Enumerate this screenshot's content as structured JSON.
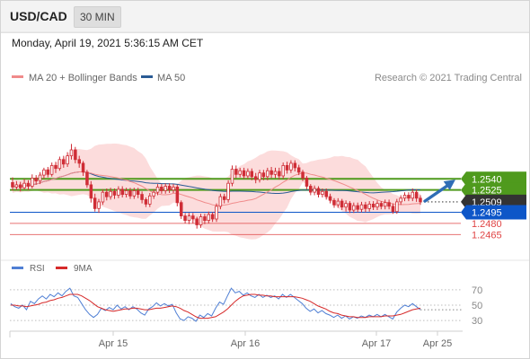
{
  "header": {
    "symbol": "USD/CAD",
    "timeframe": "30 MIN"
  },
  "datetime": "Monday, April 19, 2021 5:36:15 AM CET",
  "legend": {
    "ma20": "MA 20 + Bollinger Bands",
    "ma50": "MA 50",
    "credit": "Research © 2021 Trading Central",
    "rsi": "RSI",
    "ma9": "9MA"
  },
  "colors": {
    "candle": "#cf2d36",
    "ma20": "#f08b8b",
    "band": "#fcdcdc",
    "ma50": "#2a5b95",
    "resistance": "#4f9a1d",
    "pivot": "#0d56c8",
    "support": "#e04545",
    "current": "#333333",
    "rsi": "#4f7fd4",
    "rsi_ma": "#d62a2a",
    "arrow": "#2f6db5"
  },
  "chart_data": [
    {
      "type": "candlestick",
      "x_ticks": [
        "Apr 15",
        "Apr 16",
        "Apr 17",
        "Apr 25"
      ],
      "ylim": [
        1.244,
        1.266
      ],
      "current_price": 1.2509,
      "levels": [
        {
          "value": 1.254,
          "label": "1.2540",
          "kind": "resistance"
        },
        {
          "value": 1.2525,
          "label": "1.2525",
          "kind": "resistance"
        },
        {
          "value": 1.2509,
          "label": "1.2509",
          "kind": "current"
        },
        {
          "value": 1.2495,
          "label": "1.2495",
          "kind": "pivot"
        },
        {
          "value": 1.248,
          "label": "1.2480",
          "kind": "support"
        },
        {
          "value": 1.2465,
          "label": "1.2465",
          "kind": "support"
        }
      ],
      "candles": [
        [
          1.2535,
          1.2529,
          1.2542,
          1.2524
        ],
        [
          1.2529,
          1.2532,
          1.2537,
          1.2525
        ],
        [
          1.2532,
          1.2528,
          1.2536,
          1.2523
        ],
        [
          1.2528,
          1.2534,
          1.254,
          1.2526
        ],
        [
          1.2534,
          1.253,
          1.2538,
          1.2525
        ],
        [
          1.253,
          1.2541,
          1.2546,
          1.2527
        ],
        [
          1.2541,
          1.2537,
          1.2545,
          1.2532
        ],
        [
          1.2537,
          1.2545,
          1.2549,
          1.2533
        ],
        [
          1.2545,
          1.2552,
          1.2555,
          1.254
        ],
        [
          1.2552,
          1.2546,
          1.2556,
          1.2542
        ],
        [
          1.2546,
          1.2558,
          1.2562,
          1.2543
        ],
        [
          1.2558,
          1.2554,
          1.2563,
          1.2548
        ],
        [
          1.2554,
          1.2566,
          1.257,
          1.2551
        ],
        [
          1.2566,
          1.256,
          1.2571,
          1.2555
        ],
        [
          1.256,
          1.2571,
          1.2576,
          1.2556
        ],
        [
          1.2571,
          1.2579,
          1.2587,
          1.2566
        ],
        [
          1.2579,
          1.2566,
          1.2583,
          1.2561
        ],
        [
          1.2566,
          1.2561,
          1.2571,
          1.2555
        ],
        [
          1.2561,
          1.2549,
          1.2564,
          1.2544
        ],
        [
          1.2549,
          1.2532,
          1.2552,
          1.2528
        ],
        [
          1.2532,
          1.2514,
          1.2537,
          1.2508
        ],
        [
          1.2514,
          1.25,
          1.252,
          1.2496
        ],
        [
          1.25,
          1.2509,
          1.2513,
          1.2494
        ],
        [
          1.2509,
          1.2522,
          1.2526,
          1.2505
        ],
        [
          1.2522,
          1.2516,
          1.2527,
          1.2511
        ],
        [
          1.2516,
          1.2523,
          1.2528,
          1.2512
        ],
        [
          1.2523,
          1.2518,
          1.2527,
          1.2513
        ],
        [
          1.2518,
          1.2526,
          1.253,
          1.2514
        ],
        [
          1.2526,
          1.2519,
          1.253,
          1.2515
        ],
        [
          1.2519,
          1.2524,
          1.2528,
          1.2515
        ],
        [
          1.2524,
          1.2517,
          1.2528,
          1.2513
        ],
        [
          1.2517,
          1.2524,
          1.2528,
          1.2513
        ],
        [
          1.2524,
          1.2519,
          1.2528,
          1.2514
        ],
        [
          1.2519,
          1.2512,
          1.2523,
          1.2507
        ],
        [
          1.2512,
          1.2506,
          1.2515,
          1.2502
        ],
        [
          1.2506,
          1.2517,
          1.2521,
          1.2502
        ],
        [
          1.2517,
          1.2522,
          1.2526,
          1.2513
        ],
        [
          1.2522,
          1.2529,
          1.2533,
          1.2518
        ],
        [
          1.2529,
          1.2524,
          1.2533,
          1.252
        ],
        [
          1.2524,
          1.253,
          1.2534,
          1.252
        ],
        [
          1.253,
          1.2525,
          1.2534,
          1.2521
        ],
        [
          1.2525,
          1.2529,
          1.2533,
          1.2521
        ],
        [
          1.2529,
          1.2508,
          1.2532,
          1.2503
        ],
        [
          1.2508,
          1.249,
          1.2511,
          1.2486
        ],
        [
          1.249,
          1.2484,
          1.2494,
          1.248
        ],
        [
          1.2484,
          1.249,
          1.2494,
          1.2479
        ],
        [
          1.249,
          1.2486,
          1.2494,
          1.248
        ],
        [
          1.2486,
          1.2478,
          1.2489,
          1.2473
        ],
        [
          1.2478,
          1.2489,
          1.2493,
          1.2474
        ],
        [
          1.2489,
          1.2484,
          1.2493,
          1.2479
        ],
        [
          1.2484,
          1.2492,
          1.2496,
          1.248
        ],
        [
          1.2492,
          1.2486,
          1.2495,
          1.2482
        ],
        [
          1.2486,
          1.2503,
          1.2507,
          1.2482
        ],
        [
          1.2503,
          1.2516,
          1.252,
          1.2499
        ],
        [
          1.2516,
          1.2512,
          1.252,
          1.2507
        ],
        [
          1.2512,
          1.2534,
          1.2538,
          1.2508
        ],
        [
          1.2534,
          1.2553,
          1.2558,
          1.253
        ],
        [
          1.2553,
          1.2546,
          1.2558,
          1.2541
        ],
        [
          1.2546,
          1.2551,
          1.2555,
          1.2542
        ],
        [
          1.2551,
          1.2544,
          1.2555,
          1.254
        ],
        [
          1.2544,
          1.255,
          1.2554,
          1.254
        ],
        [
          1.255,
          1.2543,
          1.2554,
          1.2538
        ],
        [
          1.2543,
          1.2539,
          1.2548,
          1.2534
        ],
        [
          1.2539,
          1.2548,
          1.2552,
          1.2535
        ],
        [
          1.2548,
          1.2543,
          1.2552,
          1.2538
        ],
        [
          1.2543,
          1.2551,
          1.2555,
          1.2538
        ],
        [
          1.2551,
          1.2546,
          1.2556,
          1.2541
        ],
        [
          1.2546,
          1.255,
          1.2555,
          1.2541
        ],
        [
          1.255,
          1.2544,
          1.2555,
          1.2539
        ],
        [
          1.2544,
          1.2558,
          1.2562,
          1.254
        ],
        [
          1.2558,
          1.2552,
          1.2563,
          1.2547
        ],
        [
          1.2552,
          1.2561,
          1.2565,
          1.2548
        ],
        [
          1.2561,
          1.2555,
          1.2565,
          1.255
        ],
        [
          1.2555,
          1.2549,
          1.2559,
          1.2545
        ],
        [
          1.2549,
          1.2541,
          1.2552,
          1.2537
        ],
        [
          1.2541,
          1.253,
          1.2544,
          1.2526
        ],
        [
          1.253,
          1.2522,
          1.2533,
          1.2518
        ],
        [
          1.2522,
          1.2527,
          1.2531,
          1.2518
        ],
        [
          1.2527,
          1.2519,
          1.253,
          1.2515
        ],
        [
          1.2519,
          1.2523,
          1.2527,
          1.2515
        ],
        [
          1.2523,
          1.2516,
          1.2527,
          1.2512
        ],
        [
          1.2516,
          1.2511,
          1.252,
          1.2507
        ],
        [
          1.2511,
          1.2505,
          1.2514,
          1.2501
        ],
        [
          1.2505,
          1.251,
          1.2514,
          1.2501
        ],
        [
          1.251,
          1.2502,
          1.2513,
          1.2498
        ],
        [
          1.2502,
          1.2507,
          1.2511,
          1.2496
        ],
        [
          1.2507,
          1.2498,
          1.251,
          1.2494
        ],
        [
          1.2498,
          1.2504,
          1.2508,
          1.2494
        ],
        [
          1.2504,
          1.2499,
          1.2508,
          1.2495
        ],
        [
          1.2499,
          1.2505,
          1.2509,
          1.2495
        ],
        [
          1.2505,
          1.25,
          1.2509,
          1.2495
        ],
        [
          1.25,
          1.2506,
          1.251,
          1.2496
        ],
        [
          1.2506,
          1.2502,
          1.251,
          1.2498
        ],
        [
          1.2502,
          1.2507,
          1.2511,
          1.2498
        ],
        [
          1.2507,
          1.2503,
          1.251,
          1.2499
        ],
        [
          1.2503,
          1.2508,
          1.2512,
          1.2499
        ],
        [
          1.2508,
          1.2503,
          1.2512,
          1.2499
        ],
        [
          1.2503,
          1.2496,
          1.2507,
          1.2493
        ],
        [
          1.2496,
          1.2509,
          1.2513,
          1.2493
        ],
        [
          1.2509,
          1.2514,
          1.2518,
          1.2505
        ],
        [
          1.2514,
          1.2518,
          1.2522,
          1.251
        ],
        [
          1.2518,
          1.2514,
          1.2522,
          1.251
        ],
        [
          1.2514,
          1.2522,
          1.2527,
          1.251
        ],
        [
          1.2522,
          1.2514,
          1.2526,
          1.2509
        ],
        [
          1.2514,
          1.2509,
          1.2518,
          1.2505
        ]
      ]
    },
    {
      "type": "line",
      "title": "RSI",
      "ylim": [
        22,
        78
      ],
      "y_ticks": [
        70,
        50,
        30
      ],
      "series": [
        {
          "name": "RSI",
          "values": [
            52,
            48,
            46,
            50,
            44,
            55,
            52,
            58,
            62,
            58,
            64,
            61,
            66,
            62,
            68,
            72,
            62,
            60,
            52,
            44,
            38,
            34,
            38,
            46,
            43,
            47,
            44,
            50,
            45,
            48,
            44,
            48,
            45,
            40,
            37,
            45,
            48,
            53,
            49,
            52,
            49,
            51,
            40,
            32,
            30,
            35,
            33,
            29,
            37,
            34,
            39,
            36,
            46,
            54,
            51,
            62,
            72,
            66,
            68,
            63,
            66,
            62,
            60,
            64,
            60,
            63,
            60,
            62,
            58,
            64,
            60,
            64,
            60,
            56,
            52,
            46,
            42,
            45,
            40,
            43,
            39,
            37,
            34,
            37,
            33,
            36,
            32,
            35,
            33,
            36,
            34,
            37,
            35,
            38,
            35,
            38,
            35,
            32,
            41,
            46,
            50,
            48,
            52,
            48,
            44
          ]
        },
        {
          "name": "9MA",
          "values": [
            50,
            50,
            49,
            49,
            48,
            49,
            50,
            51,
            53,
            54,
            56,
            57,
            59,
            60,
            62,
            64,
            64,
            64,
            62,
            59,
            56,
            52,
            48,
            46,
            44,
            43,
            42,
            43,
            44,
            45,
            45,
            46,
            46,
            45,
            44,
            44,
            45,
            46,
            46,
            47,
            48,
            49,
            48,
            46,
            43,
            41,
            38,
            35,
            33,
            33,
            33,
            34,
            35,
            38,
            41,
            45,
            50,
            55,
            59,
            62,
            63,
            64,
            64,
            63,
            63,
            62,
            62,
            61,
            61,
            61,
            61,
            61,
            61,
            60,
            59,
            57,
            55,
            52,
            49,
            47,
            45,
            42,
            40,
            39,
            37,
            36,
            35,
            35,
            34,
            34,
            34,
            35,
            35,
            35,
            35,
            36,
            36,
            36,
            37,
            38,
            40,
            42,
            44,
            45,
            46
          ]
        }
      ]
    }
  ]
}
